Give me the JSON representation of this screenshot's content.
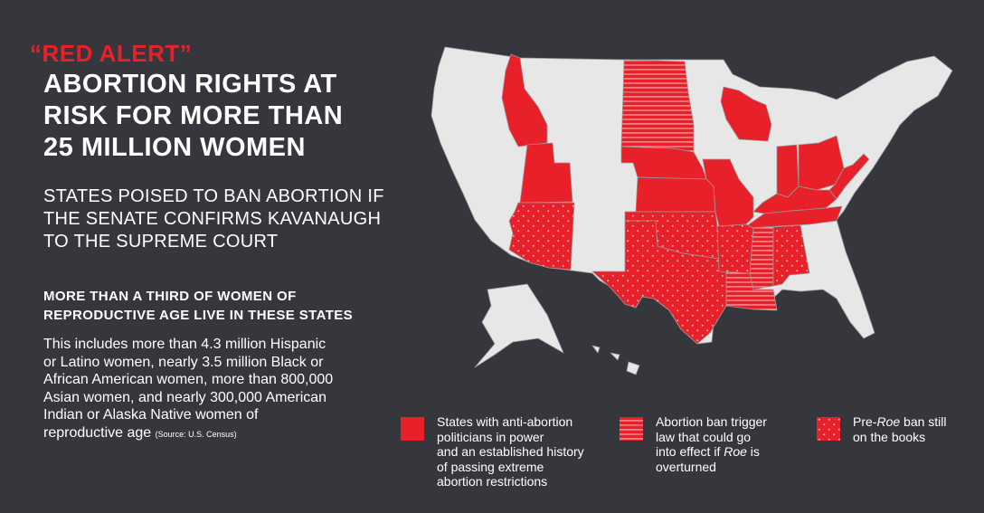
{
  "headline": {
    "alert": "“RED ALERT”",
    "lines": [
      "ABORTION RIGHTS AT",
      "RISK FOR MORE THAN",
      "25 MILLION WOMEN"
    ]
  },
  "subheading": [
    "STATES POISED TO BAN ABORTION IF",
    "THE SENATE CONFIRMS KAVANAUGH",
    "TO THE SUPREME COURT"
  ],
  "stat": {
    "heading": [
      "MORE THAN A THIRD OF WOMEN OF",
      "REPRODUCTIVE AGE LIVE IN THESE STATES"
    ],
    "body_lines": [
      "This includes more than 4.3 million Hispanic",
      "or Latino women, nearly 3.5 million Black or",
      "African American women, more than 800,000",
      "Asian women, and nearly 300,000 American",
      "Indian or Alaska Native women of",
      "reproductive age"
    ],
    "source": "(Source: U.S. Census)"
  },
  "colors": {
    "background": "#35373d",
    "accent": "#e8202a",
    "land": "#e7e7e7",
    "border": "#9a9a9a"
  },
  "legend": [
    {
      "pattern": "solid",
      "lines": [
        "States with anti-abortion",
        "politicians in power",
        "and an established history",
        "of passing extreme",
        "abortion restrictions"
      ]
    },
    {
      "pattern": "stripes",
      "lines": [
        "Abortion ban trigger",
        "law that could go",
        "into effect if",
        "overturned"
      ],
      "italic_word": "Roe",
      "italic_line_index": 2
    },
    {
      "pattern": "dots",
      "lines_prefix": "Pre-",
      "italic_word": "Roe",
      "lines": [
        " ban still",
        "on the books"
      ]
    }
  ],
  "map": {
    "categories": {
      "solid": [
        "Idaho",
        "Utah",
        "Nebraska",
        "Kansas",
        "Missouri",
        "Wisconsin",
        "Indiana",
        "Ohio",
        "Kentucky",
        "Tennessee",
        "West Virginia"
      ],
      "stripes": [
        "North Dakota",
        "South Dakota",
        "Mississippi",
        "Louisiana"
      ],
      "dots": [
        "Arizona",
        "Oklahoma",
        "Texas",
        "Arkansas",
        "Alabama"
      ]
    }
  }
}
